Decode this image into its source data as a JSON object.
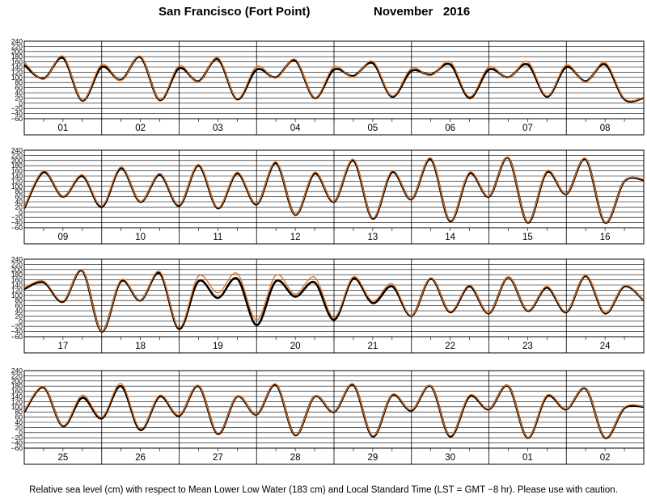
{
  "header": {
    "station": "San Francisco (Fort Point)",
    "period": "November   2016"
  },
  "footer": {
    "note": "Relative sea level (cm) with respect to Mean Lower Low Water (183 cm) and Local Standard Time (LST = GMT −8 hr). Please use with caution."
  },
  "colors": {
    "observed": "#000000",
    "predicted": "#e0701f",
    "grid": "#000000"
  },
  "chart_data": [
    {
      "type": "line",
      "panel": 1,
      "ylim": [
        -60,
        240
      ],
      "y_ticks": [
        "240",
        "220",
        "200",
        "180",
        "160",
        "140",
        "120",
        "100",
        "80",
        "60",
        "40",
        "20",
        "0",
        "−20",
        "−40",
        "−60"
      ],
      "day_labels": [
        "01",
        "02",
        "03",
        "04",
        "05",
        "06",
        "07",
        "08"
      ],
      "series": [
        {
          "role": "observed",
          "x_days": [
            0,
            0.25,
            0.5,
            0.75,
            1,
            1.25,
            1.5,
            1.75,
            2,
            2.25,
            2.5,
            2.75,
            3,
            3.25,
            3.5,
            3.75,
            4,
            4.25,
            4.5,
            4.75,
            5,
            5.25,
            5.5,
            5.75,
            6,
            6.25,
            6.5,
            6.75,
            7,
            7.25,
            7.5,
            7.75,
            8
          ],
          "values": [
            148,
            95,
            175,
            10,
            140,
            90,
            178,
            12,
            135,
            85,
            170,
            15,
            130,
            100,
            165,
            20,
            130,
            105,
            155,
            25,
            125,
            110,
            150,
            20,
            130,
            100,
            150,
            25,
            140,
            85,
            150,
            15,
            20
          ]
        },
        {
          "role": "predicted",
          "x_days": [
            0,
            0.25,
            0.5,
            0.75,
            1,
            1.25,
            1.5,
            1.75,
            2,
            2.25,
            2.5,
            2.75,
            3,
            3.25,
            3.5,
            3.75,
            4,
            4.25,
            4.5,
            4.75,
            5,
            5.25,
            5.5,
            5.75,
            6,
            6.25,
            6.5,
            6.75,
            7,
            7.25,
            7.5,
            7.75,
            8
          ],
          "values": [
            160,
            92,
            182,
            12,
            150,
            88,
            182,
            14,
            145,
            82,
            176,
            18,
            142,
            97,
            170,
            22,
            140,
            102,
            162,
            28,
            135,
            107,
            160,
            25,
            140,
            98,
            160,
            28,
            148,
            82,
            158,
            18,
            22
          ]
        }
      ]
    },
    {
      "type": "line",
      "panel": 2,
      "ylim": [
        -60,
        240
      ],
      "y_ticks": [
        "240",
        "220",
        "200",
        "180",
        "160",
        "140",
        "120",
        "100",
        "80",
        "60",
        "40",
        "20",
        "0",
        "−20",
        "−40",
        "−60"
      ],
      "day_labels": [
        "09",
        "10",
        "11",
        "12",
        "13",
        "14",
        "15",
        "16"
      ],
      "series": [
        {
          "role": "observed",
          "x_days": [
            0,
            0.25,
            0.5,
            0.75,
            1,
            1.25,
            1.5,
            1.75,
            2,
            2.25,
            2.5,
            2.75,
            3,
            3.25,
            3.5,
            3.75,
            4,
            4.25,
            4.5,
            4.75,
            5,
            5.25,
            5.5,
            5.75,
            6,
            6.25,
            6.5,
            6.75,
            7,
            7.25,
            7.5,
            7.75,
            8
          ],
          "values": [
            15,
            155,
            60,
            140,
            20,
            170,
            40,
            145,
            25,
            180,
            15,
            150,
            30,
            190,
            -10,
            150,
            40,
            200,
            -25,
            155,
            50,
            205,
            -35,
            150,
            60,
            210,
            -40,
            155,
            70,
            205,
            -40,
            120,
            125
          ]
        },
        {
          "role": "predicted",
          "x_days": [
            0,
            0.25,
            0.5,
            0.75,
            1,
            1.25,
            1.5,
            1.75,
            2,
            2.25,
            2.5,
            2.75,
            3,
            3.25,
            3.5,
            3.75,
            4,
            4.25,
            4.5,
            4.75,
            5,
            5.25,
            5.5,
            5.75,
            6,
            6.25,
            6.5,
            6.75,
            7,
            7.25,
            7.5,
            7.75,
            8
          ],
          "values": [
            20,
            160,
            62,
            145,
            25,
            175,
            42,
            150,
            28,
            185,
            18,
            155,
            33,
            195,
            -8,
            155,
            42,
            205,
            -22,
            160,
            52,
            210,
            -32,
            155,
            62,
            212,
            -38,
            160,
            72,
            208,
            -38,
            122,
            128
          ]
        }
      ]
    },
    {
      "type": "line",
      "panel": 3,
      "ylim": [
        -60,
        240
      ],
      "y_ticks": [
        "240",
        "220",
        "200",
        "180",
        "160",
        "140",
        "120",
        "100",
        "80",
        "60",
        "40",
        "20",
        "0",
        "−20",
        "−40",
        "−60"
      ],
      "day_labels": [
        "17",
        "18",
        "19",
        "20",
        "21",
        "22",
        "23",
        "24"
      ],
      "series": [
        {
          "role": "observed",
          "x_days": [
            0,
            0.25,
            0.5,
            0.75,
            1,
            1.25,
            1.5,
            1.75,
            2,
            2.25,
            2.5,
            2.75,
            3,
            3.25,
            3.5,
            3.75,
            4,
            4.25,
            4.5,
            4.75,
            5,
            5.25,
            5.5,
            5.75,
            6,
            6.25,
            6.5,
            6.75,
            7,
            7.25,
            7.5,
            7.75,
            8
          ],
          "values": [
            125,
            150,
            75,
            195,
            -40,
            155,
            80,
            185,
            -30,
            155,
            90,
            165,
            -15,
            155,
            95,
            150,
            5,
            165,
            70,
            135,
            20,
            165,
            35,
            135,
            30,
            170,
            40,
            130,
            35,
            175,
            30,
            135,
            80
          ]
        },
        {
          "role": "predicted",
          "x_days": [
            0,
            0.25,
            0.5,
            0.75,
            1,
            1.25,
            1.5,
            1.75,
            2,
            2.25,
            2.5,
            2.75,
            3,
            3.25,
            3.5,
            3.75,
            4,
            4.25,
            4.5,
            4.75,
            5,
            5.25,
            5.5,
            5.75,
            6,
            6.25,
            6.5,
            6.75,
            7,
            7.25,
            7.5,
            7.75,
            8
          ],
          "values": [
            130,
            155,
            78,
            198,
            -38,
            160,
            82,
            192,
            -25,
            175,
            110,
            185,
            5,
            178,
            105,
            170,
            15,
            172,
            78,
            145,
            22,
            168,
            38,
            140,
            32,
            172,
            42,
            135,
            38,
            178,
            33,
            138,
            82
          ]
        }
      ]
    },
    {
      "type": "line",
      "panel": 4,
      "ylim": [
        -60,
        240
      ],
      "y_ticks": [
        "240",
        "220",
        "200",
        "180",
        "160",
        "140",
        "120",
        "100",
        "80",
        "60",
        "40",
        "20",
        "0",
        "−20",
        "−40",
        "−60"
      ],
      "day_labels": [
        "25",
        "26",
        "27",
        "28",
        "29",
        "30",
        "01",
        "02"
      ],
      "series": [
        {
          "role": "observed",
          "x_days": [
            0,
            0.25,
            0.5,
            0.75,
            1,
            1.25,
            1.5,
            1.75,
            2,
            2.25,
            2.5,
            2.75,
            3,
            3.25,
            3.5,
            3.75,
            4,
            4.25,
            4.5,
            4.75,
            5,
            5.25,
            5.5,
            5.75,
            6,
            6.25,
            6.5,
            6.75,
            7,
            7.25,
            7.5,
            7.75,
            8
          ],
          "values": [
            80,
            175,
            25,
            135,
            55,
            180,
            10,
            140,
            65,
            180,
            -5,
            140,
            70,
            185,
            -10,
            140,
            80,
            185,
            -15,
            145,
            85,
            180,
            -15,
            140,
            90,
            180,
            -20,
            140,
            90,
            170,
            -20,
            95,
            100
          ]
        },
        {
          "role": "predicted",
          "x_days": [
            0,
            0.25,
            0.5,
            0.75,
            1,
            1.25,
            1.5,
            1.75,
            2,
            2.25,
            2.5,
            2.75,
            3,
            3.25,
            3.5,
            3.75,
            4,
            4.25,
            4.5,
            4.75,
            5,
            5.25,
            5.5,
            5.75,
            6,
            6.25,
            6.5,
            6.75,
            7,
            7.25,
            7.5,
            7.75,
            8
          ],
          "values": [
            85,
            178,
            28,
            145,
            60,
            190,
            15,
            145,
            68,
            183,
            -2,
            142,
            72,
            188,
            -8,
            142,
            82,
            188,
            -12,
            148,
            88,
            182,
            -12,
            145,
            92,
            182,
            -18,
            145,
            92,
            172,
            -18,
            98,
            102
          ]
        }
      ]
    }
  ]
}
